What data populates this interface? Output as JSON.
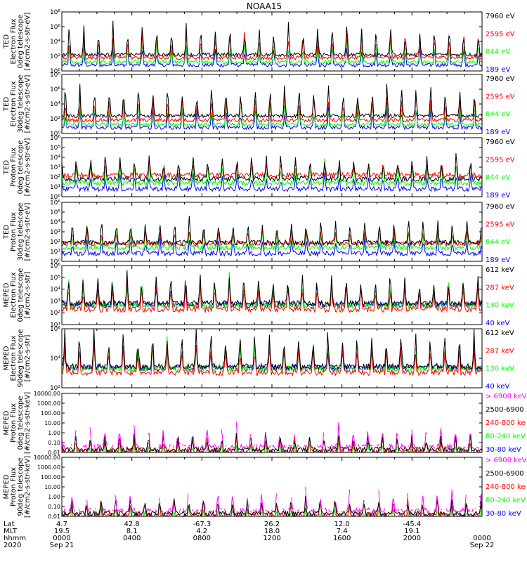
{
  "title": "NOAA15",
  "colors": {
    "blue": "#0000ff",
    "red": "#ff0000",
    "green": "#00ff00",
    "black": "#000000",
    "magenta": "#ff00ff"
  },
  "footer": {
    "row_labels": [
      "Lat",
      "MLT",
      "hhmm",
      "2020"
    ],
    "lat": [
      "4.7",
      "42.8",
      "-67.3",
      "26.2",
      "12.0",
      "-45.4"
    ],
    "mlt": [
      "19.5",
      "8.1",
      "4.2",
      "18.0",
      "7.4",
      "19.1"
    ],
    "hhmm": [
      "0000",
      "0400",
      "0800",
      "1200",
      "1600",
      "2000",
      "0000"
    ],
    "dates": [
      "Sep 21",
      "Sep 22"
    ]
  },
  "chart_data": [
    {
      "type": "line",
      "panel": "ted-electron-0deg",
      "ylabel": [
        "TED",
        "Electron Flux",
        "0deg telescope",
        "[#/cm2-s-str-eV]"
      ],
      "ytick_labels": [
        "10⁰",
        "10²",
        "10⁴",
        "10⁶",
        "10⁸"
      ],
      "ylim_log": [
        0,
        8
      ],
      "yscale": "log",
      "series": [
        {
          "name": "7960 eV",
          "color": "#000000"
        },
        {
          "name": "2595 eV",
          "color": "#ff0000"
        },
        {
          "name": "844 eV",
          "color": "#00ff00"
        },
        {
          "name": "189 eV",
          "color": "#0000ff"
        }
      ]
    },
    {
      "type": "line",
      "panel": "ted-electron-30deg",
      "ylabel": [
        "TED",
        "Electron Flux",
        "30deg telescope",
        "[#/cm2-s-str-eV]"
      ],
      "ytick_labels": [
        "10⁰",
        "10²",
        "10⁴",
        "10⁶",
        "10⁸"
      ],
      "ylim_log": [
        0,
        8
      ],
      "yscale": "log",
      "series": [
        {
          "name": "7960 eV",
          "color": "#000000"
        },
        {
          "name": "2595 eV",
          "color": "#ff0000"
        },
        {
          "name": "844 eV",
          "color": "#00ff00"
        },
        {
          "name": "189 eV",
          "color": "#0000ff"
        }
      ]
    },
    {
      "type": "line",
      "panel": "ted-proton-0deg",
      "ylabel": [
        "TED",
        "Proton Flux",
        "0deg telescope",
        "[#/cm2-s-str-eV]"
      ],
      "ytick_labels": [
        "10⁰",
        "10¹",
        "10²",
        "10³",
        "10⁴",
        "10⁵",
        "10⁶"
      ],
      "ylim_log": [
        0,
        6
      ],
      "yscale": "log",
      "series": [
        {
          "name": "7960 eV",
          "color": "#000000"
        },
        {
          "name": "2595 eV",
          "color": "#ff0000"
        },
        {
          "name": "844 eV",
          "color": "#00ff00"
        },
        {
          "name": "189 eV",
          "color": "#0000ff"
        }
      ]
    },
    {
      "type": "line",
      "panel": "ted-proton-30deg",
      "ylabel": [
        "TED",
        "Proton Flux",
        "30deg telescope",
        "[#/cm2-s-str-eV]"
      ],
      "ytick_labels": [
        "10⁰",
        "10¹",
        "10²",
        "10³",
        "10⁴",
        "10⁵",
        "10⁶"
      ],
      "ylim_log": [
        0,
        6
      ],
      "yscale": "log",
      "series": [
        {
          "name": "7960 eV",
          "color": "#000000"
        },
        {
          "name": "2595 eV",
          "color": "#ff0000"
        },
        {
          "name": "844 eV",
          "color": "#00ff00"
        },
        {
          "name": "189 eV",
          "color": "#0000ff"
        }
      ]
    },
    {
      "type": "line",
      "panel": "meped-electron-0deg",
      "ylabel": [
        "MEPED",
        "Electron Flux",
        "0deg telescope",
        "[#/cm2-s-str]"
      ],
      "ytick_labels": [
        "10¹",
        "10²",
        "10³",
        "10⁴",
        "10⁵",
        "10⁶"
      ],
      "ylim_log": [
        1,
        6
      ],
      "yscale": "log",
      "series": [
        {
          "name": "612 keV",
          "color": "#000000"
        },
        {
          "name": "287 keV",
          "color": "#ff0000"
        },
        {
          "name": "130 keV",
          "color": "#00ff00"
        },
        {
          "name": "40 keV",
          "color": "#0000ff"
        }
      ]
    },
    {
      "type": "line",
      "panel": "meped-electron-90deg",
      "ylabel": [
        "MEPED",
        "Electron Flux",
        "90deg telescope",
        "[#/cm2-s-str]"
      ],
      "ytick_labels": [
        "10²",
        "10⁴",
        "10⁶"
      ],
      "ylim_log": [
        1,
        6
      ],
      "yscale": "log",
      "series": [
        {
          "name": "612 keV",
          "color": "#000000"
        },
        {
          "name": "287 keV",
          "color": "#ff0000"
        },
        {
          "name": "130 keV",
          "color": "#00ff00"
        },
        {
          "name": "40 keV",
          "color": "#0000ff"
        }
      ]
    },
    {
      "type": "line",
      "panel": "meped-proton-0deg",
      "ylabel": [
        "MEPED",
        "Proton Flux",
        "0deg telescope",
        "[#/cm2-s-str-keV]"
      ],
      "ytick_labels": [
        "0.01",
        "0.10",
        "1.00",
        "10.00",
        "100.00",
        "1000.00",
        "10000.00"
      ],
      "ylim_log": [
        -2,
        4
      ],
      "yscale": "log",
      "series": [
        {
          "name": "> 6900 keV",
          "color": "#ff00ff"
        },
        {
          "name": "2500-6900",
          "color": "#000000"
        },
        {
          "name": "240-800 ke",
          "color": "#ff0000"
        },
        {
          "name": "80-240 keV",
          "color": "#00ff00"
        },
        {
          "name": "30-80 keV",
          "color": "#0000ff"
        }
      ]
    },
    {
      "type": "line",
      "panel": "meped-proton-90deg",
      "ylabel": [
        "MEPED",
        "Proton Flux",
        "90deg telescope",
        "[#/cm2-s-str-keV]"
      ],
      "ytick_labels": [
        "0.01",
        "0.10",
        "1.00",
        "10.00",
        "100.00",
        "1000.00",
        "10000.00"
      ],
      "ylim_log": [
        -2,
        4
      ],
      "yscale": "log",
      "series": [
        {
          "name": "> 6900 keV",
          "color": "#ff00ff"
        },
        {
          "name": "2500-6900",
          "color": "#000000"
        },
        {
          "name": "240-800 ke",
          "color": "#ff0000"
        },
        {
          "name": "80-240 keV",
          "color": "#00ff00"
        },
        {
          "name": "30-80 keV",
          "color": "#0000ff"
        }
      ]
    }
  ]
}
